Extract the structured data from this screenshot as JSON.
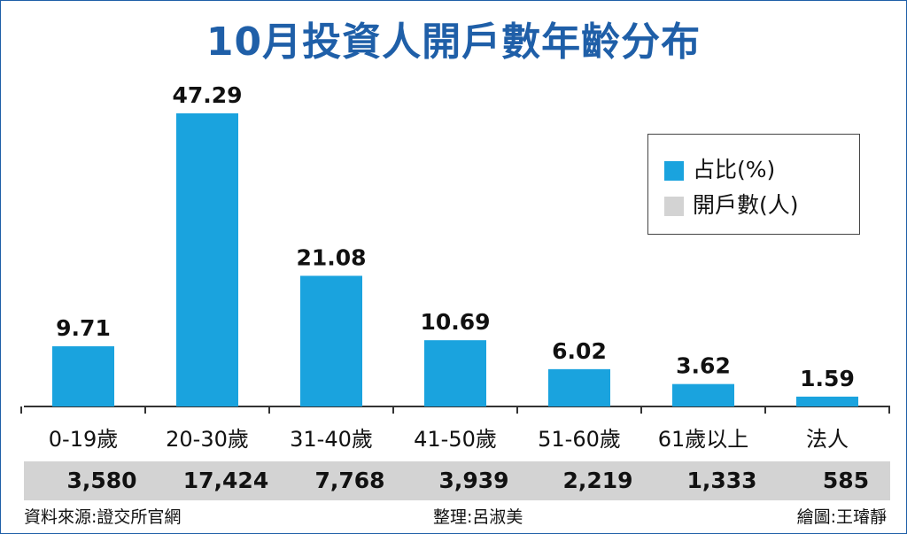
{
  "title": "10月投資人開戶數年齡分布",
  "legend": {
    "share_label": "占比(%)",
    "count_label": "開戶數(人)"
  },
  "colors": {
    "bar": "#1aa3de",
    "count_band": "#d3d3d3",
    "title": "#1f5fa8"
  },
  "chart_data": {
    "type": "bar",
    "title": "10月投資人開戶數年齡分布",
    "categories": [
      "0-19歲",
      "20-30歲",
      "31-40歲",
      "41-50歲",
      "51-60歲",
      "61歲以上",
      "法人"
    ],
    "series": [
      {
        "name": "占比(%)",
        "values": [
          "9.71",
          "47.29",
          "21.08",
          "10.69",
          "6.02",
          "3.62",
          "1.59"
        ]
      },
      {
        "name": "開戶數(人)",
        "values": [
          "3,580",
          "17,424",
          "7,768",
          "3,939",
          "2,219",
          "1,333",
          "585"
        ]
      }
    ],
    "ylim": [
      0,
      47.29
    ],
    "legend": "top-right",
    "grid": false
  },
  "footer": {
    "source": "資料來源:證交所官網",
    "editor": "整理:呂淑美",
    "artist": "繪圖:王璿靜"
  }
}
